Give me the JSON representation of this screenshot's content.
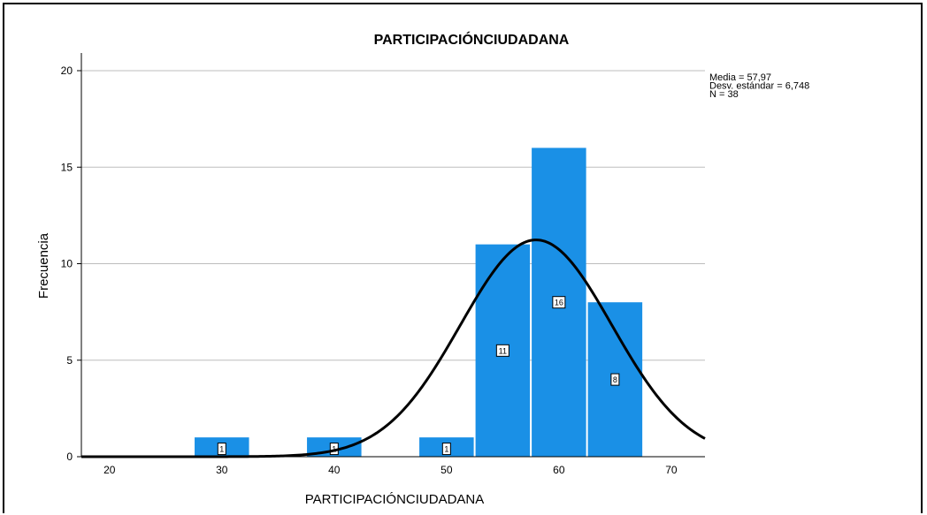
{
  "chart_data": {
    "type": "bar",
    "title": "PARTICIPACIÓNCIUDADANA",
    "xlabel": "PARTICIPACIÓNCIUDADANA",
    "ylabel": "Frecuencia",
    "xlim": [
      17.5,
      73
    ],
    "ylim": [
      0,
      20
    ],
    "x_ticks": [
      20,
      30,
      40,
      50,
      60,
      70
    ],
    "y_ticks": [
      0,
      5,
      10,
      15,
      20
    ],
    "grid": "horizontal",
    "bar_color": "#1a90e6",
    "curve_color": "#000000",
    "bins": [
      {
        "x0": 27.5,
        "x1": 32.5,
        "value": 1
      },
      {
        "x0": 37.5,
        "x1": 42.5,
        "value": 1
      },
      {
        "x0": 47.5,
        "x1": 52.5,
        "value": 1
      },
      {
        "x0": 52.5,
        "x1": 57.5,
        "value": 11
      },
      {
        "x0": 57.5,
        "x1": 62.5,
        "value": 16
      },
      {
        "x0": 62.5,
        "x1": 67.5,
        "value": 8
      }
    ],
    "normal_curve": {
      "mean": 57.97,
      "sd": 6.748,
      "n": 38,
      "bin_width": 5
    },
    "stats_text": [
      "Media = 57,97",
      "Desv. estándar = 6,748",
      "N = 38"
    ]
  }
}
